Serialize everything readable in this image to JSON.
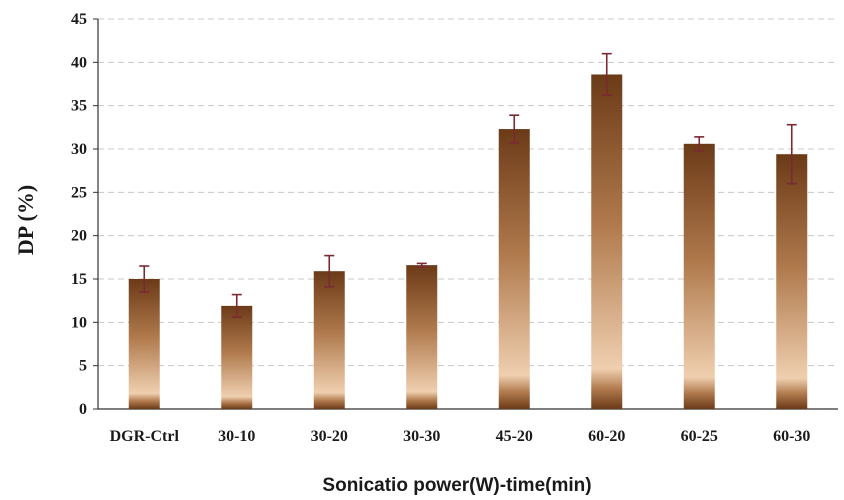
{
  "chart_data": {
    "type": "bar",
    "title": "",
    "xlabel": "Sonicatio power(W)-time(min)",
    "ylabel": "DP (%)",
    "categories": [
      "DGR-Ctrl",
      "30-10",
      "30-20",
      "30-30",
      "45-20",
      "60-20",
      "60-25",
      "60-30"
    ],
    "values": [
      15.0,
      11.9,
      15.9,
      16.6,
      32.3,
      38.6,
      30.6,
      29.4
    ],
    "errors": [
      1.5,
      1.3,
      1.8,
      0.2,
      1.6,
      2.4,
      0.8,
      3.4
    ],
    "ylim": [
      0,
      45
    ],
    "yticks": [
      0,
      5,
      10,
      15,
      20,
      25,
      30,
      35,
      40,
      45
    ],
    "grid": true,
    "colors": {
      "bar_dark": "#6b3a17",
      "bar_mid": "#b07a4d",
      "bar_light": "#efcfaf",
      "error_bar": "#7a2a33",
      "grid": "#c8c8c8",
      "axis": "#333333"
    }
  }
}
